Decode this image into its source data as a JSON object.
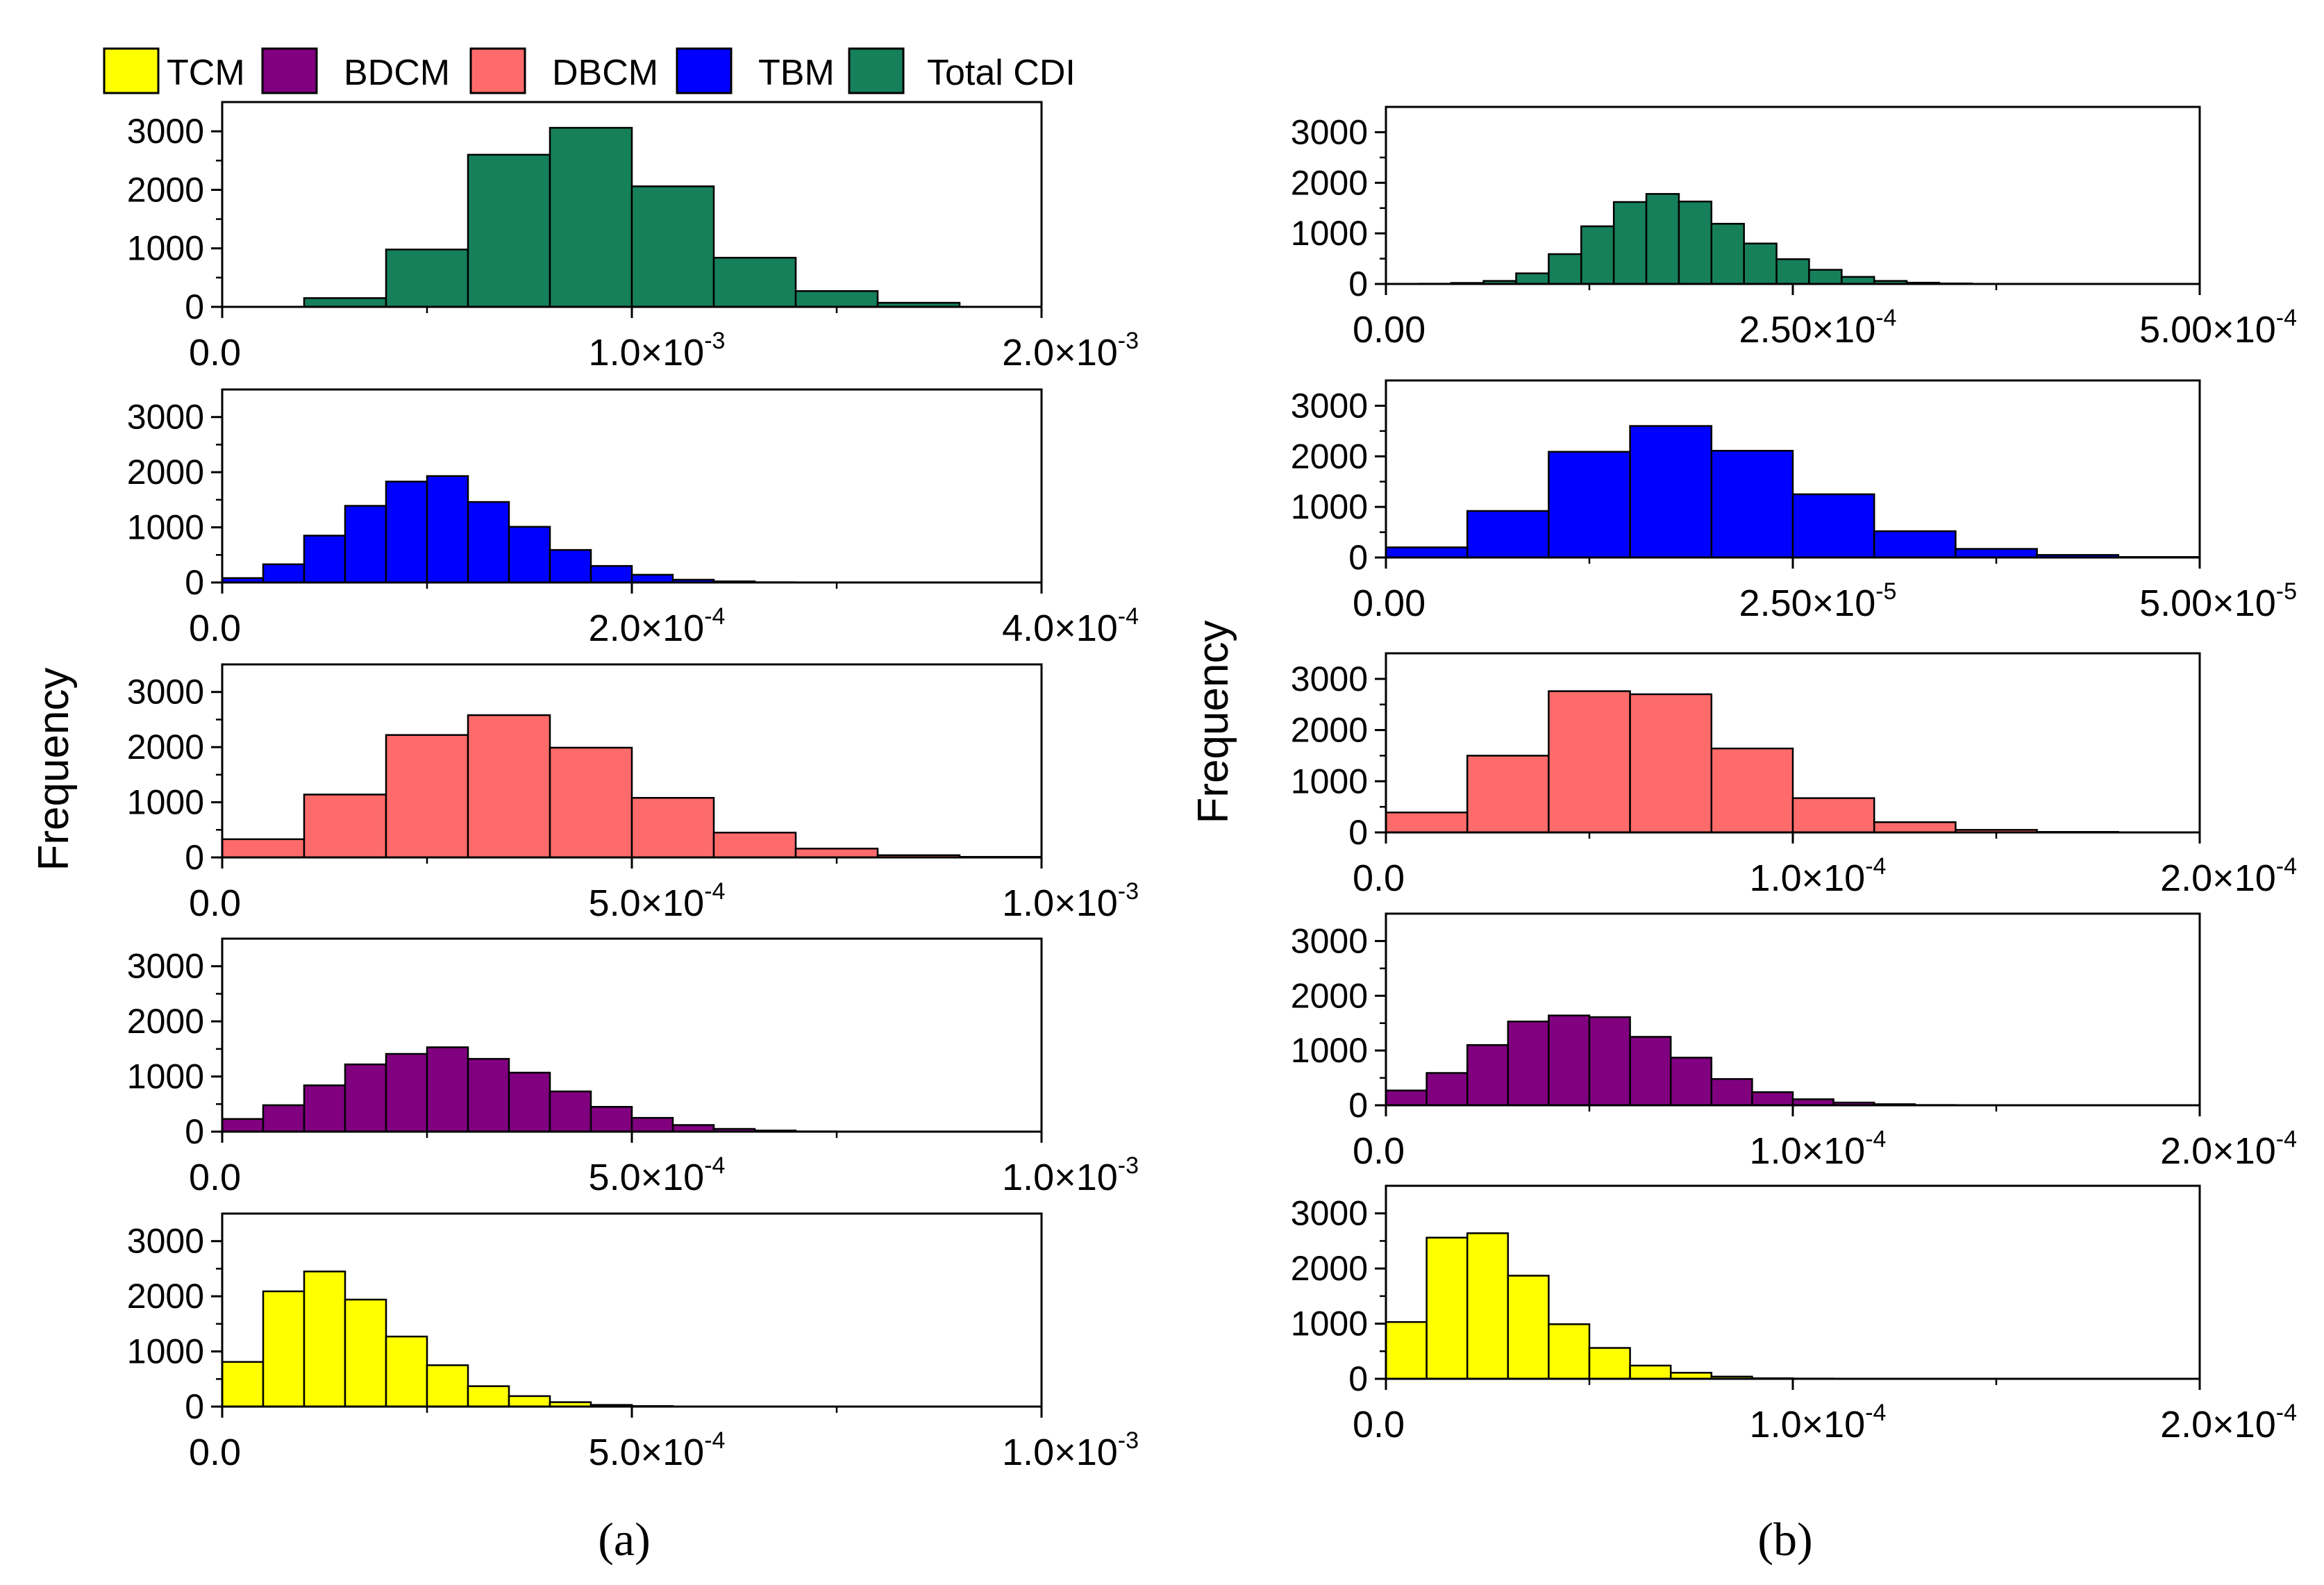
{
  "legend": [
    {
      "label": "TCM",
      "color": "#ffff00"
    },
    {
      "label": "BDCM",
      "color": "#800080"
    },
    {
      "label": "DBCM",
      "color": "#ff6b6b"
    },
    {
      "label": "TBM",
      "color": "#0000ff"
    },
    {
      "label": "Total CDI",
      "color": "#16805a"
    }
  ],
  "panel_labels": [
    "(a)",
    "(b)"
  ],
  "ylabel": "Frequency",
  "chart_data": [
    {
      "panel": "(a)",
      "series": "Total CDI",
      "type": "bar",
      "color": "#16805a",
      "bin_edges": [
        0,
        0.0002,
        0.0004,
        0.0006,
        0.0008,
        0.001,
        0.0012,
        0.0014,
        0.0016,
        0.0018,
        0.002
      ],
      "values": [
        0,
        150,
        980,
        2600,
        3060,
        2060,
        840,
        270,
        70,
        0
      ],
      "xlim": [
        0,
        0.002
      ],
      "ylim": [
        0,
        3500
      ],
      "yticks": [
        0,
        1000,
        2000,
        3000
      ],
      "xtick_labels": [
        {
          "value": 0,
          "base": "0.0",
          "exp": ""
        },
        {
          "value": 0.001,
          "base": "1.0×10",
          "exp": "-3"
        },
        {
          "value": 0.002,
          "base": "2.0×10",
          "exp": "-3"
        }
      ]
    },
    {
      "panel": "(a)",
      "series": "TBM",
      "type": "bar",
      "color": "#0000ff",
      "bin_edges": [
        0,
        2e-05,
        4e-05,
        6e-05,
        8e-05,
        0.0001,
        0.00012,
        0.00014,
        0.00016,
        0.00018,
        0.0002,
        0.00022,
        0.00024,
        0.00026,
        0.00028,
        0.0003,
        0.00032,
        0.00034,
        0.00036,
        0.00038,
        0.0004
      ],
      "values": [
        80,
        330,
        850,
        1390,
        1830,
        1930,
        1460,
        1010,
        590,
        300,
        140,
        50,
        20,
        5,
        0,
        0,
        0,
        0,
        0,
        0
      ],
      "xlim": [
        0,
        0.0004
      ],
      "ylim": [
        0,
        3500
      ],
      "yticks": [
        0,
        1000,
        2000,
        3000
      ],
      "xtick_labels": [
        {
          "value": 0,
          "base": "0.0",
          "exp": ""
        },
        {
          "value": 0.0002,
          "base": "2.0×10",
          "exp": "-4"
        },
        {
          "value": 0.0004,
          "base": "4.0×10",
          "exp": "-4"
        }
      ]
    },
    {
      "panel": "(a)",
      "series": "DBCM",
      "type": "bar",
      "color": "#ff6b6b",
      "bin_edges": [
        0,
        0.0001,
        0.0002,
        0.0003,
        0.0004,
        0.0005,
        0.0006,
        0.0007,
        0.0008,
        0.0009,
        0.001
      ],
      "values": [
        330,
        1140,
        2220,
        2580,
        1990,
        1080,
        450,
        160,
        40,
        10
      ],
      "xlim": [
        0,
        0.001
      ],
      "ylim": [
        0,
        3500
      ],
      "yticks": [
        0,
        1000,
        2000,
        3000
      ],
      "xtick_labels": [
        {
          "value": 0,
          "base": "0.0",
          "exp": ""
        },
        {
          "value": 0.0005,
          "base": "5.0×10",
          "exp": "-4"
        },
        {
          "value": 0.001,
          "base": "1.0×10",
          "exp": "-3"
        }
      ]
    },
    {
      "panel": "(a)",
      "series": "BDCM",
      "type": "bar",
      "color": "#800080",
      "bin_edges": [
        0,
        5e-05,
        0.0001,
        0.00015,
        0.0002,
        0.00025,
        0.0003,
        0.00035,
        0.0004,
        0.00045,
        0.0005,
        0.00055,
        0.0006,
        0.00065,
        0.0007,
        0.00075,
        0.0008,
        0.00085,
        0.0009,
        0.00095,
        0.001
      ],
      "values": [
        230,
        480,
        840,
        1220,
        1410,
        1530,
        1320,
        1070,
        730,
        450,
        250,
        120,
        50,
        20,
        5,
        0,
        0,
        0,
        0,
        0
      ],
      "xlim": [
        0,
        0.001
      ],
      "ylim": [
        0,
        3500
      ],
      "yticks": [
        0,
        1000,
        2000,
        3000
      ],
      "xtick_labels": [
        {
          "value": 0,
          "base": "0.0",
          "exp": ""
        },
        {
          "value": 0.0005,
          "base": "5.0×10",
          "exp": "-4"
        },
        {
          "value": 0.001,
          "base": "1.0×10",
          "exp": "-3"
        }
      ]
    },
    {
      "panel": "(a)",
      "series": "TCM",
      "type": "bar",
      "color": "#ffff00",
      "bin_edges": [
        0,
        5e-05,
        0.0001,
        0.00015,
        0.0002,
        0.00025,
        0.0003,
        0.00035,
        0.0004,
        0.00045,
        0.0005,
        0.00055,
        0.0006,
        0.00065,
        0.0007,
        0.00075,
        0.0008,
        0.00085,
        0.0009,
        0.00095,
        0.001
      ],
      "values": [
        810,
        2090,
        2450,
        1940,
        1270,
        750,
        370,
        190,
        80,
        30,
        10,
        0,
        0,
        0,
        0,
        0,
        0,
        0,
        0,
        0
      ],
      "xlim": [
        0,
        0.001
      ],
      "ylim": [
        0,
        3500
      ],
      "yticks": [
        0,
        1000,
        2000,
        3000
      ],
      "xtick_labels": [
        {
          "value": 0,
          "base": "0.0",
          "exp": ""
        },
        {
          "value": 0.0005,
          "base": "5.0×10",
          "exp": "-4"
        },
        {
          "value": 0.001,
          "base": "1.0×10",
          "exp": "-3"
        }
      ]
    },
    {
      "panel": "(b)",
      "series": "Total CDI",
      "type": "bar",
      "color": "#16805a",
      "bin_edges": [
        0,
        2e-05,
        4e-05,
        6e-05,
        8e-05,
        0.0001,
        0.00012,
        0.00014,
        0.00016,
        0.00018,
        0.0002,
        0.00022,
        0.00024,
        0.00026,
        0.00028,
        0.0003,
        0.00032,
        0.00034,
        0.00036,
        0.00038,
        0.0004,
        0.00042,
        0.00044,
        0.00046,
        0.00048,
        0.0005
      ],
      "values": [
        0,
        5,
        20,
        60,
        210,
        590,
        1140,
        1620,
        1780,
        1630,
        1190,
        800,
        490,
        280,
        140,
        60,
        25,
        10,
        0,
        0,
        0,
        0,
        0,
        0,
        0
      ],
      "xlim": [
        0,
        0.0005
      ],
      "ylim": [
        0,
        3500
      ],
      "yticks": [
        0,
        1000,
        2000,
        3000
      ],
      "xtick_labels": [
        {
          "value": 0,
          "base": "0.00",
          "exp": ""
        },
        {
          "value": 0.00025,
          "base": "2.50×10",
          "exp": "-4"
        },
        {
          "value": 0.0005,
          "base": "5.00×10",
          "exp": "-4"
        }
      ]
    },
    {
      "panel": "(b)",
      "series": "TBM",
      "type": "bar",
      "color": "#0000ff",
      "bin_edges": [
        0,
        5e-06,
        1e-05,
        1.5e-05,
        2e-05,
        2.5e-05,
        3e-05,
        3.5e-05,
        4e-05,
        4.5e-05,
        5e-05
      ],
      "values": [
        200,
        920,
        2090,
        2600,
        2110,
        1250,
        520,
        170,
        50,
        10
      ],
      "xlim": [
        0,
        5e-05
      ],
      "ylim": [
        0,
        3500
      ],
      "yticks": [
        0,
        1000,
        2000,
        3000
      ],
      "xtick_labels": [
        {
          "value": 0,
          "base": "0.00",
          "exp": ""
        },
        {
          "value": 2.5e-05,
          "base": "2.50×10",
          "exp": "-5"
        },
        {
          "value": 5e-05,
          "base": "5.00×10",
          "exp": "-5"
        }
      ]
    },
    {
      "panel": "(b)",
      "series": "DBCM",
      "type": "bar",
      "color": "#ff6b6b",
      "bin_edges": [
        0,
        2e-05,
        4e-05,
        6e-05,
        8e-05,
        0.0001,
        0.00012,
        0.00014,
        0.00016,
        0.00018,
        0.0002
      ],
      "values": [
        390,
        1500,
        2760,
        2700,
        1640,
        670,
        200,
        50,
        10,
        0
      ],
      "xlim": [
        0,
        0.0002
      ],
      "ylim": [
        0,
        3500
      ],
      "yticks": [
        0,
        1000,
        2000,
        3000
      ],
      "xtick_labels": [
        {
          "value": 0,
          "base": "0.0",
          "exp": ""
        },
        {
          "value": 0.0001,
          "base": "1.0×10",
          "exp": "-4"
        },
        {
          "value": 0.0002,
          "base": "2.0×10",
          "exp": "-4"
        }
      ]
    },
    {
      "panel": "(b)",
      "series": "BDCM",
      "type": "bar",
      "color": "#800080",
      "bin_edges": [
        0,
        1e-05,
        2e-05,
        3e-05,
        4e-05,
        5e-05,
        6e-05,
        7e-05,
        8e-05,
        9e-05,
        0.0001,
        0.00011,
        0.00012,
        0.00013,
        0.00014,
        0.00015,
        0.00016,
        0.00017,
        0.00018,
        0.00019,
        0.0002
      ],
      "values": [
        270,
        590,
        1100,
        1530,
        1640,
        1610,
        1250,
        870,
        480,
        240,
        110,
        50,
        20,
        5,
        0,
        0,
        0,
        0,
        0,
        0
      ],
      "xlim": [
        0,
        0.0002
      ],
      "ylim": [
        0,
        3500
      ],
      "yticks": [
        0,
        1000,
        2000,
        3000
      ],
      "xtick_labels": [
        {
          "value": 0,
          "base": "0.0",
          "exp": ""
        },
        {
          "value": 0.0001,
          "base": "1.0×10",
          "exp": "-4"
        },
        {
          "value": 0.0002,
          "base": "2.0×10",
          "exp": "-4"
        }
      ]
    },
    {
      "panel": "(b)",
      "series": "TCM",
      "type": "bar",
      "color": "#ffff00",
      "bin_edges": [
        0,
        1e-05,
        2e-05,
        3e-05,
        4e-05,
        5e-05,
        6e-05,
        7e-05,
        8e-05,
        9e-05,
        0.0001,
        0.00011,
        0.00012,
        0.00013,
        0.00014,
        0.00015,
        0.00016,
        0.00017,
        0.00018,
        0.00019,
        0.0002
      ],
      "values": [
        1030,
        2560,
        2640,
        1870,
        990,
        560,
        240,
        110,
        40,
        10,
        5,
        0,
        0,
        0,
        0,
        0,
        0,
        0,
        0,
        0
      ],
      "xlim": [
        0,
        0.0002
      ],
      "ylim": [
        0,
        3500
      ],
      "yticks": [
        0,
        1000,
        2000,
        3000
      ],
      "xtick_labels": [
        {
          "value": 0,
          "base": "0.0",
          "exp": ""
        },
        {
          "value": 0.0001,
          "base": "1.0×10",
          "exp": "-4"
        },
        {
          "value": 0.0002,
          "base": "2.0×10",
          "exp": "-4"
        }
      ]
    }
  ]
}
